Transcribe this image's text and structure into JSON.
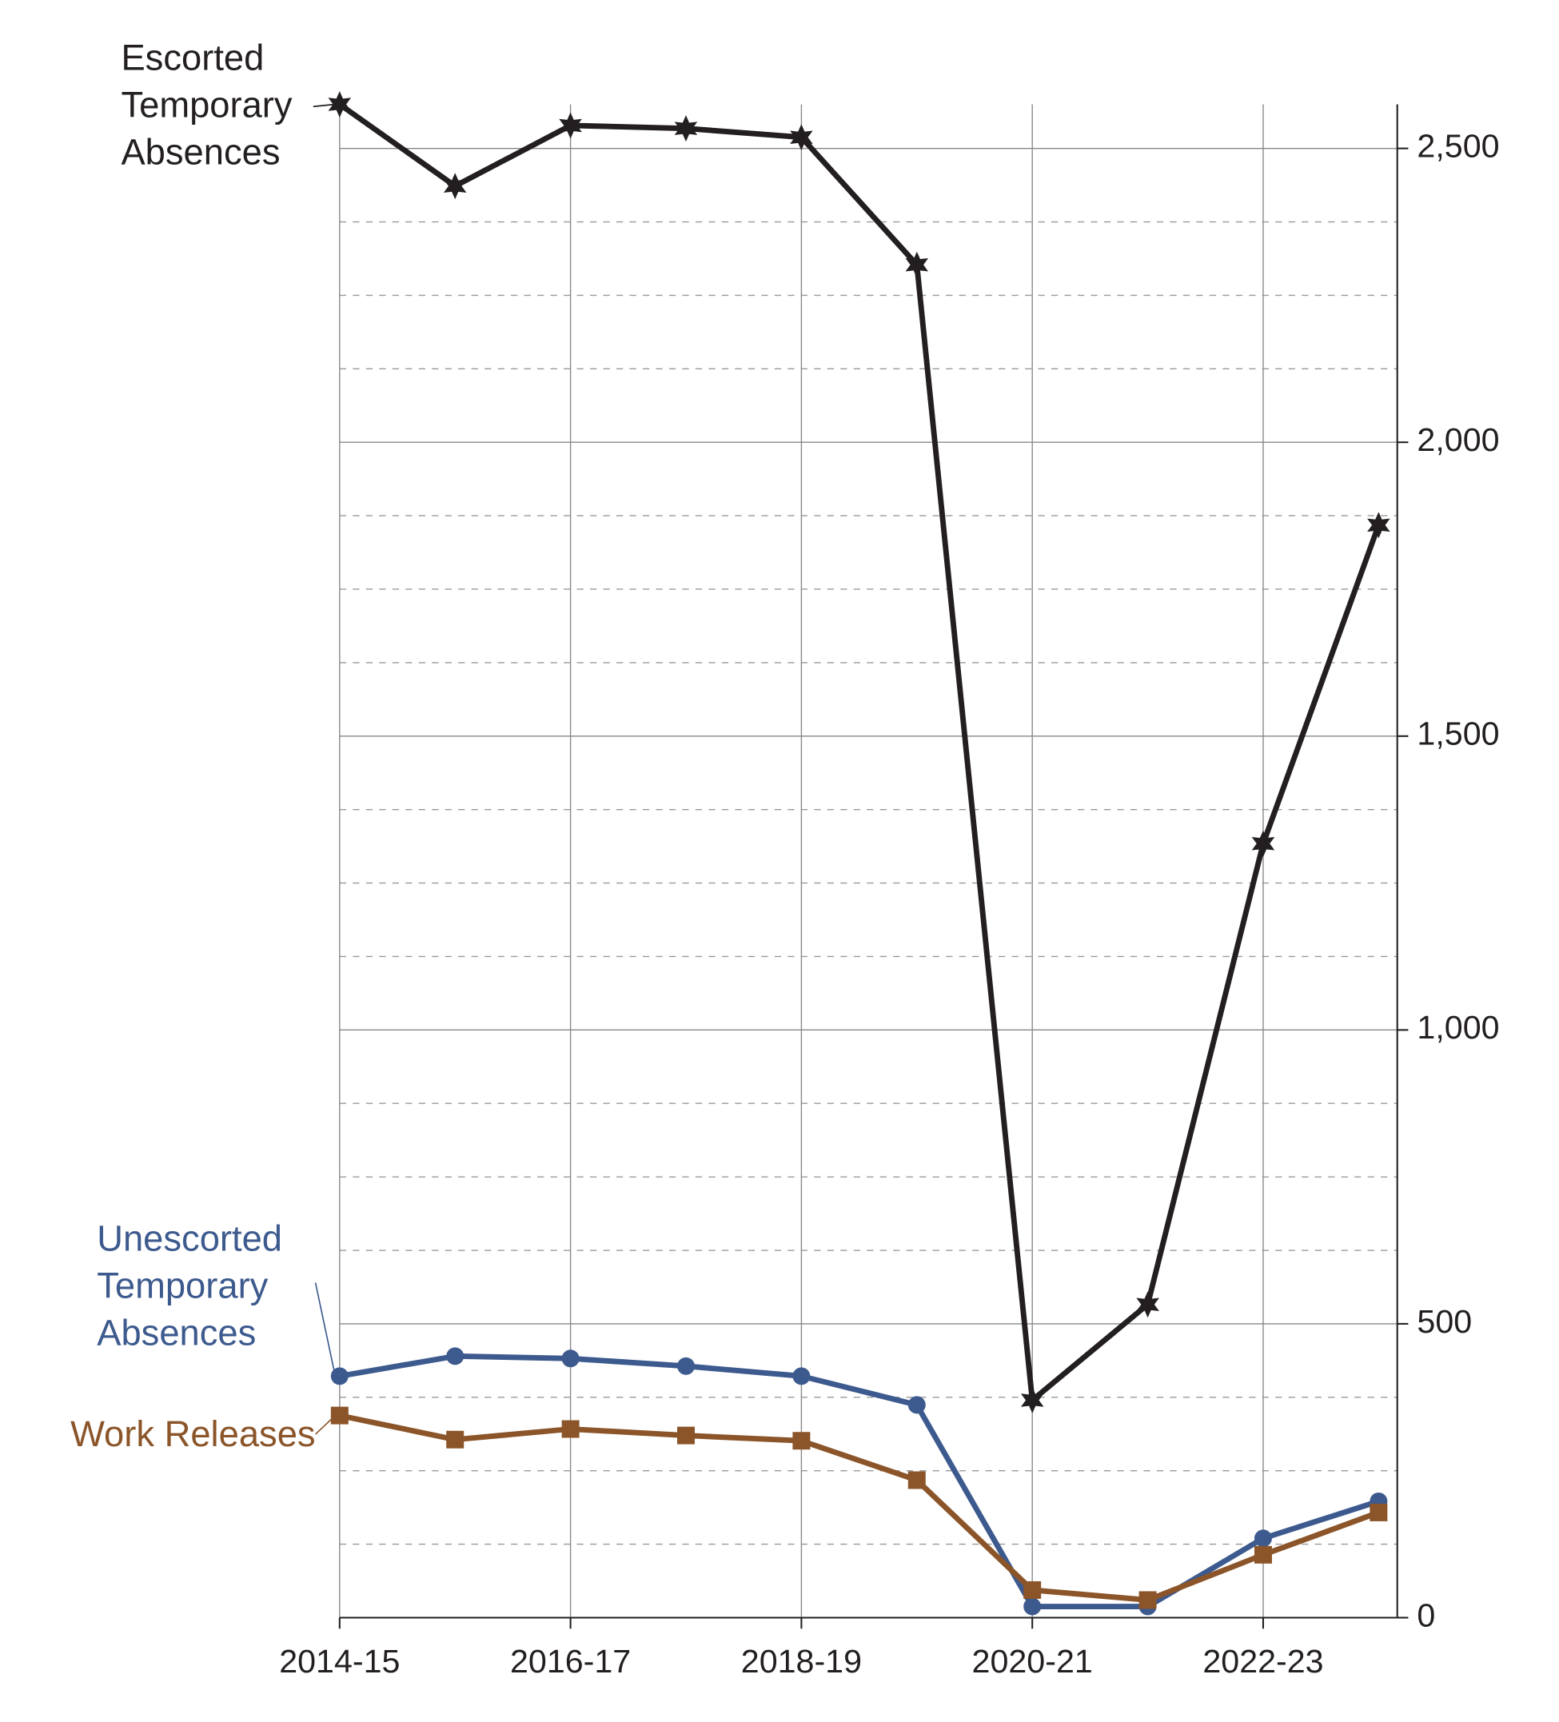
{
  "chart_data": {
    "type": "line",
    "categories": [
      "2014-15",
      null,
      "2016-17",
      null,
      "2018-19",
      null,
      "2020-21",
      null,
      "2022-23",
      null
    ],
    "series": [
      {
        "name": [
          "Escorted",
          "Temporary",
          "Absences"
        ],
        "color": "#231f20",
        "marker": "star",
        "values": [
          2575,
          2436,
          2539,
          2534,
          2519,
          2302,
          370,
          533,
          1317,
          1859
        ]
      },
      {
        "name": [
          "Unescorted",
          "Temporary",
          "Absences"
        ],
        "color": "#3d5a8e",
        "marker": "circle",
        "values": [
          411,
          445,
          441,
          428,
          411,
          362,
          19,
          19,
          135,
          198
        ]
      },
      {
        "name": [
          "Work Releases"
        ],
        "color": "#8b5529",
        "marker": "square",
        "values": [
          344,
          303,
          321,
          310,
          301,
          234,
          47,
          30,
          107,
          179
        ]
      }
    ],
    "ylim": [
      0,
      2575
    ],
    "yticks": [
      0,
      500,
      {
        "value": 1000,
        "label": "1,000"
      },
      {
        "value": 1500,
        "label": "1,500"
      },
      {
        "value": 2000,
        "label": "2,000"
      },
      {
        "value": 2500,
        "label": "2,500"
      }
    ],
    "minor_yticks": [
      125,
      250,
      375,
      625,
      750,
      875,
      1125,
      1250,
      1375,
      1625,
      1750,
      1875,
      2125,
      2250,
      2375
    ],
    "y_axis_side": "right",
    "grid": true
  }
}
